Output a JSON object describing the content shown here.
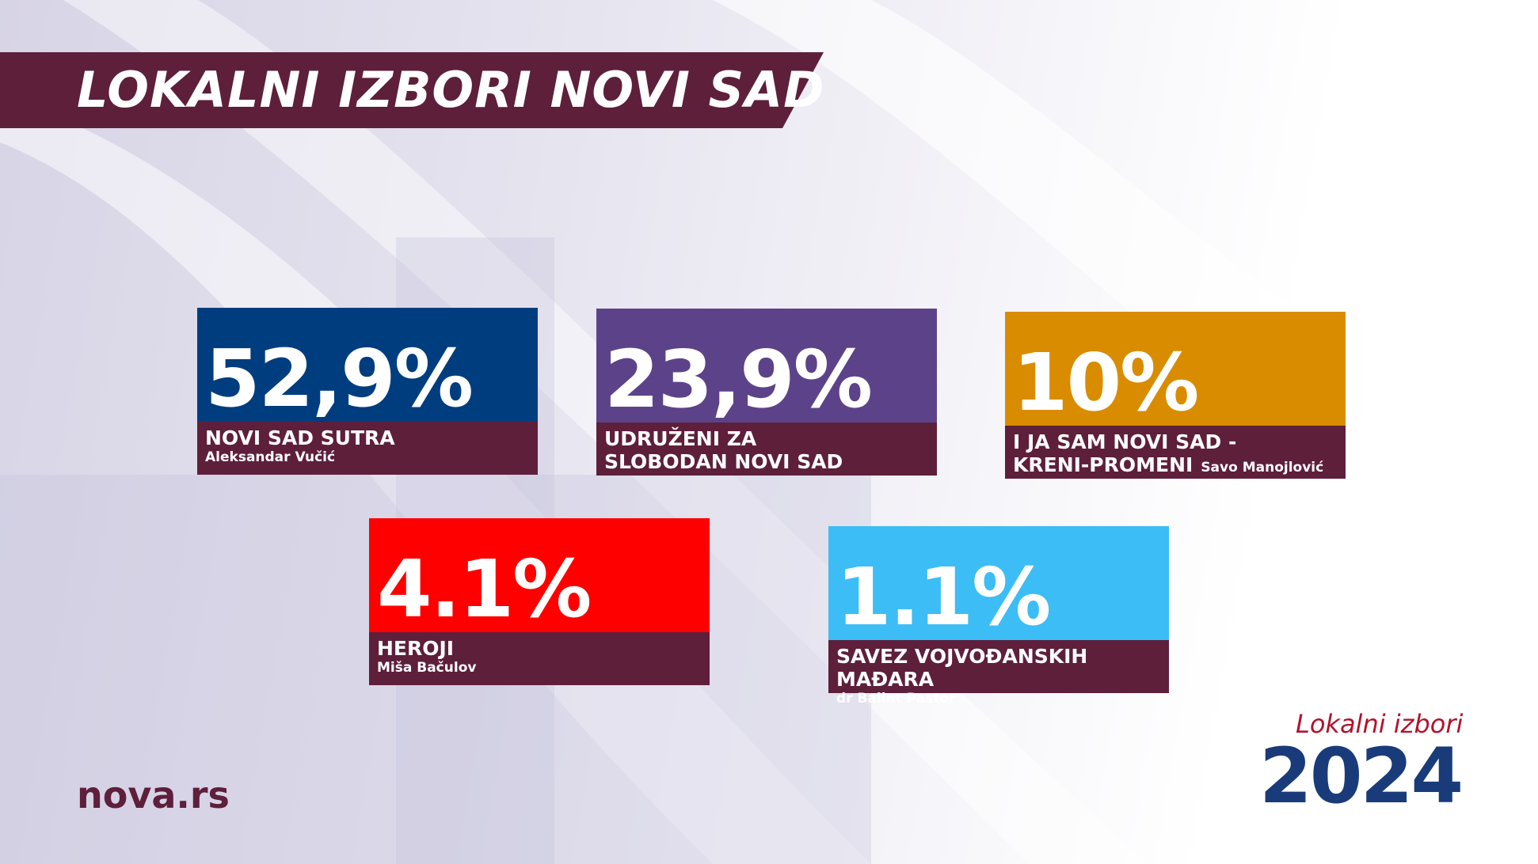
{
  "header": {
    "title": "LOKALNI IZBORI NOVI SAD"
  },
  "results": [
    {
      "value": "52,9%",
      "party_lines": [
        "NOVI SAD SUTRA"
      ],
      "leader": "Aleksandar Vučić",
      "color": "#003d7f"
    },
    {
      "value": "23,9%",
      "party_lines": [
        "UDRUŽENI ZA",
        "SLOBODAN NOVI SAD"
      ],
      "color": "#5c4389"
    },
    {
      "value": "10%",
      "party_lines": [
        "I JA SAM NOVI SAD -",
        "KRENI-PROMENI"
      ],
      "leader": "Savo Manojlović",
      "color": "#d98c00"
    },
    {
      "value": "4.1%",
      "party_lines": [
        "HEROJI"
      ],
      "leader": "Miša Bačulov",
      "color": "#ff0000"
    },
    {
      "value": "1.1%",
      "party_lines": [
        "SAVEZ VOJVOĐANSKIH MAĐARA"
      ],
      "leader": "dr Balint Pastor",
      "color": "#3cbdf5"
    }
  ],
  "footer": {
    "brand": "nova.rs",
    "logo_caption": "Lokalni izbori",
    "logo_year": "2024"
  }
}
